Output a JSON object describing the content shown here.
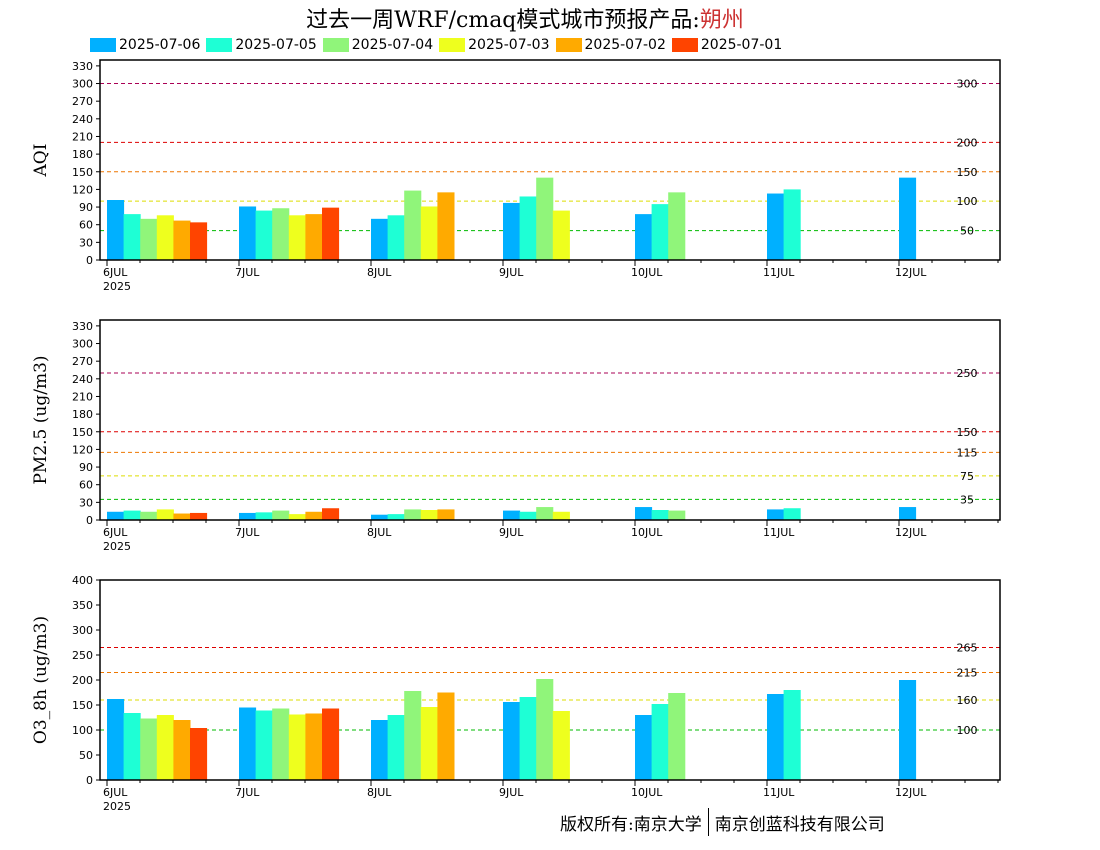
{
  "title": {
    "main": "过去一周WRF/cmaq模式城市预报产品:",
    "city": "朔州"
  },
  "legend": [
    {
      "label": "2025-07-06",
      "color": "#00b0ff"
    },
    {
      "label": "2025-07-05",
      "color": "#1effd5"
    },
    {
      "label": "2025-07-04",
      "color": "#90f57a"
    },
    {
      "label": "2025-07-03",
      "color": "#eeff1e"
    },
    {
      "label": "2025-07-02",
      "color": "#ffaa00"
    },
    {
      "label": "2025-07-01",
      "color": "#ff4400"
    }
  ],
  "copyright": {
    "left": "版权所有:南京大学",
    "right": "南京创蓝科技有限公司"
  },
  "chart_data": [
    {
      "type": "bar",
      "ylabel": "AQI",
      "ylim": [
        0,
        340
      ],
      "yticks": [
        0,
        30,
        60,
        90,
        120,
        150,
        180,
        210,
        240,
        270,
        300,
        330
      ],
      "categories": [
        "6JUL",
        "7JUL",
        "8JUL",
        "9JUL",
        "10JUL",
        "11JUL",
        "12JUL"
      ],
      "year_label": "2025",
      "ref_lines": [
        {
          "value": 300,
          "label": "300",
          "color": "#aa0055"
        },
        {
          "value": 200,
          "label": "200",
          "color": "#dd0000"
        },
        {
          "value": 150,
          "label": "150",
          "color": "#ee7700"
        },
        {
          "value": 100,
          "label": "100",
          "color": "#dddd00"
        },
        {
          "value": 50,
          "label": "50",
          "color": "#00bb00"
        }
      ],
      "series": [
        {
          "name": "2025-07-06",
          "values": [
            102,
            91,
            70,
            97,
            78,
            113,
            140
          ]
        },
        {
          "name": "2025-07-05",
          "values": [
            78,
            84,
            76,
            108,
            95,
            120,
            null
          ]
        },
        {
          "name": "2025-07-04",
          "values": [
            70,
            88,
            118,
            140,
            115,
            null,
            null
          ]
        },
        {
          "name": "2025-07-03",
          "values": [
            76,
            76,
            91,
            84,
            null,
            null,
            null
          ]
        },
        {
          "name": "2025-07-02",
          "values": [
            67,
            78,
            115,
            null,
            null,
            null,
            null
          ]
        },
        {
          "name": "2025-07-01",
          "values": [
            64,
            89,
            null,
            null,
            null,
            null,
            null
          ]
        }
      ]
    },
    {
      "type": "bar",
      "ylabel": "PM2.5 (ug/m3)",
      "ylim": [
        0,
        340
      ],
      "yticks": [
        0,
        30,
        60,
        90,
        120,
        150,
        180,
        210,
        240,
        270,
        300,
        330
      ],
      "categories": [
        "6JUL",
        "7JUL",
        "8JUL",
        "9JUL",
        "10JUL",
        "11JUL",
        "12JUL"
      ],
      "year_label": "2025",
      "ref_lines": [
        {
          "value": 250,
          "label": "250",
          "color": "#aa0055"
        },
        {
          "value": 150,
          "label": "150",
          "color": "#dd0000"
        },
        {
          "value": 115,
          "label": "115",
          "color": "#ee7700"
        },
        {
          "value": 75,
          "label": "75",
          "color": "#dddd00"
        },
        {
          "value": 35,
          "label": "35",
          "color": "#00bb00"
        }
      ],
      "series": [
        {
          "name": "2025-07-06",
          "values": [
            14,
            12,
            9,
            16,
            22,
            18,
            22
          ]
        },
        {
          "name": "2025-07-05",
          "values": [
            16,
            13,
            10,
            14,
            17,
            20,
            null
          ]
        },
        {
          "name": "2025-07-04",
          "values": [
            14,
            16,
            18,
            22,
            16,
            null,
            null
          ]
        },
        {
          "name": "2025-07-03",
          "values": [
            18,
            10,
            17,
            14,
            null,
            null,
            null
          ]
        },
        {
          "name": "2025-07-02",
          "values": [
            11,
            14,
            18,
            null,
            null,
            null,
            null
          ]
        },
        {
          "name": "2025-07-01",
          "values": [
            12,
            20,
            null,
            null,
            null,
            null,
            null
          ]
        }
      ]
    },
    {
      "type": "bar",
      "ylabel": "O3_8h (ug/m3)",
      "ylim": [
        0,
        400
      ],
      "yticks": [
        0,
        50,
        100,
        150,
        200,
        250,
        300,
        350,
        400
      ],
      "categories": [
        "6JUL",
        "7JUL",
        "8JUL",
        "9JUL",
        "10JUL",
        "11JUL",
        "12JUL"
      ],
      "year_label": "2025",
      "ref_lines": [
        {
          "value": 265,
          "label": "265",
          "color": "#dd0000"
        },
        {
          "value": 215,
          "label": "215",
          "color": "#ee7700"
        },
        {
          "value": 160,
          "label": "160",
          "color": "#dddd00"
        },
        {
          "value": 100,
          "label": "100",
          "color": "#00bb00"
        }
      ],
      "series": [
        {
          "name": "2025-07-06",
          "values": [
            162,
            145,
            120,
            156,
            130,
            172,
            200
          ]
        },
        {
          "name": "2025-07-05",
          "values": [
            134,
            139,
            130,
            166,
            152,
            180,
            null
          ]
        },
        {
          "name": "2025-07-04",
          "values": [
            123,
            143,
            178,
            202,
            174,
            null,
            null
          ]
        },
        {
          "name": "2025-07-03",
          "values": [
            130,
            131,
            146,
            138,
            null,
            null,
            null
          ]
        },
        {
          "name": "2025-07-02",
          "values": [
            120,
            133,
            175,
            null,
            null,
            null,
            null
          ]
        },
        {
          "name": "2025-07-01",
          "values": [
            104,
            143,
            null,
            null,
            null,
            null,
            null
          ]
        }
      ]
    }
  ]
}
